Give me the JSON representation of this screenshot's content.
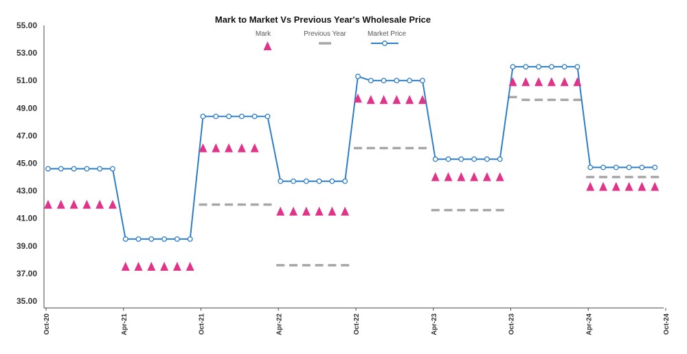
{
  "chart_data": {
    "type": "line",
    "title": "Mark to Market Vs Previous Year's Wholesale Price",
    "xlabel": "",
    "ylabel": "",
    "ylim": [
      35.0,
      55.0
    ],
    "y_ticks": [
      "55.00",
      "53.00",
      "51.00",
      "49.00",
      "47.00",
      "45.00",
      "43.00",
      "41.00",
      "39.00",
      "37.00",
      "35.00"
    ],
    "y_tick_values": [
      55,
      53,
      51,
      49,
      47,
      45,
      43,
      41,
      39,
      37,
      35
    ],
    "x_tick_labels": [
      "Oct-20",
      "Apr-21",
      "Oct-21",
      "Apr-22",
      "Oct-22",
      "Apr-23",
      "Oct-23",
      "Apr-24",
      "Oct-24"
    ],
    "x_tick_index": [
      0,
      6,
      12,
      18,
      24,
      30,
      36,
      42,
      48
    ],
    "legend": [
      "Mark",
      "Previous Year",
      "Market Price"
    ],
    "legend_placement": "top-center",
    "grid": false,
    "colors": {
      "Mark": "#e0338a",
      "Previous Year": "#a6a6a6",
      "Market Price": "#2b7cc7"
    },
    "series": [
      {
        "name": "Market Price",
        "values": [
          44.6,
          44.6,
          44.6,
          44.6,
          44.6,
          44.6,
          39.5,
          39.5,
          39.5,
          39.5,
          39.5,
          39.5,
          48.4,
          48.4,
          48.4,
          48.4,
          48.4,
          48.4,
          43.7,
          43.7,
          43.7,
          43.7,
          43.7,
          43.7,
          51.3,
          51.0,
          51.0,
          51.0,
          51.0,
          51.0,
          45.3,
          45.3,
          45.3,
          45.3,
          45.3,
          45.3,
          52.0,
          52.0,
          52.0,
          52.0,
          52.0,
          52.0,
          44.7,
          44.7,
          44.7,
          44.7,
          44.7,
          44.7
        ]
      },
      {
        "name": "Mark",
        "values": [
          42.0,
          42.0,
          42.0,
          42.0,
          42.0,
          42.0,
          37.5,
          37.5,
          37.5,
          37.5,
          37.5,
          37.5,
          46.1,
          46.1,
          46.1,
          46.1,
          46.1,
          53.5,
          41.5,
          41.5,
          41.5,
          41.5,
          41.5,
          41.5,
          49.7,
          49.6,
          49.6,
          49.6,
          49.6,
          49.6,
          44.0,
          44.0,
          44.0,
          44.0,
          44.0,
          44.0,
          50.9,
          50.9,
          50.9,
          50.9,
          50.9,
          50.9,
          43.3,
          43.3,
          43.3,
          43.3,
          43.3,
          43.3
        ]
      },
      {
        "name": "Previous Year",
        "values": [
          null,
          null,
          null,
          null,
          null,
          null,
          null,
          null,
          null,
          null,
          null,
          null,
          42.0,
          42.0,
          42.0,
          42.0,
          42.0,
          42.0,
          37.6,
          37.6,
          37.6,
          37.6,
          37.6,
          37.6,
          46.1,
          46.1,
          46.1,
          46.1,
          46.1,
          46.1,
          41.6,
          41.6,
          41.6,
          41.6,
          41.6,
          41.6,
          49.8,
          49.6,
          49.6,
          49.6,
          49.6,
          49.6,
          44.0,
          44.0,
          44.0,
          44.0,
          44.0,
          44.0
        ]
      }
    ]
  }
}
